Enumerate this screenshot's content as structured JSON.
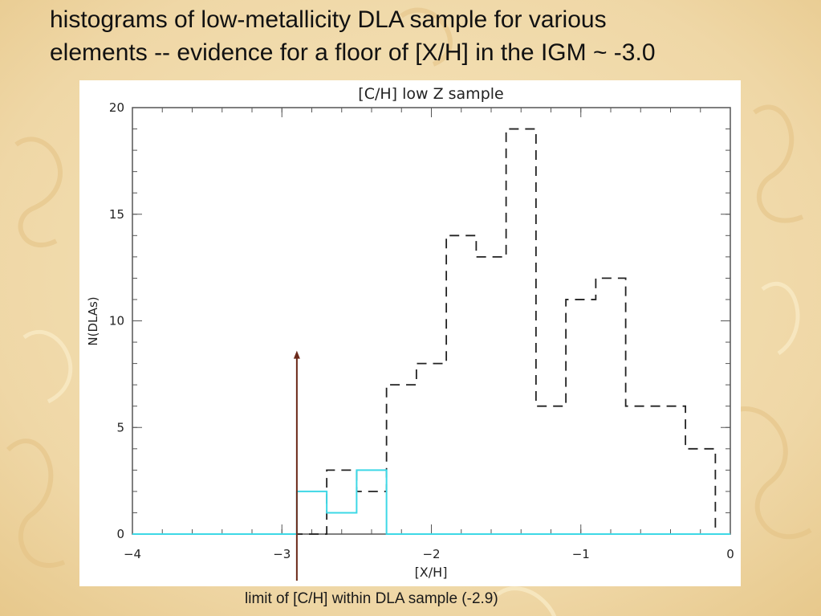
{
  "slide": {
    "title_line1": "histograms of low-metallicity DLA sample for various",
    "title_line2": "elements -- evidence for a floor of [X/H] in the IGM ~ -3.0",
    "caption": "limit of [C/H] within DLA sample (-2.9)"
  },
  "colors": {
    "background": "#f1ddb0",
    "dashed_series": "#222222",
    "solid_series": "#3ed8e6",
    "arrow": "#6b2a1a"
  },
  "chart_data": {
    "type": "histogram",
    "title": "[C/H]  low Z sample",
    "xlabel": "[X/H]",
    "ylabel": "N(DLAs)",
    "xlim": [
      -4,
      0
    ],
    "ylim": [
      0,
      20
    ],
    "x_ticks": [
      "−4",
      "−3",
      "−2",
      "−1",
      "0"
    ],
    "y_ticks": [
      "0",
      "5",
      "10",
      "15",
      "20"
    ],
    "x_tick_values": [
      -4,
      -3,
      -2,
      -1,
      0
    ],
    "y_tick_values": [
      0,
      5,
      10,
      15,
      20
    ],
    "bin_edges": [
      -4.0,
      -3.8,
      -3.6,
      -3.4,
      -3.2,
      -3.0,
      -2.9,
      -2.7,
      -2.5,
      -2.3,
      -2.1,
      -1.9,
      -1.7,
      -1.5,
      -1.3,
      -1.1,
      -0.9,
      -0.7,
      -0.5,
      -0.3,
      -0.1,
      0.0
    ],
    "series": [
      {
        "style": "dashed",
        "color": "#222222",
        "counts": [
          0,
          0,
          0,
          0,
          0,
          0,
          0,
          3,
          2,
          7,
          8,
          14,
          13,
          19,
          6,
          11,
          12,
          6,
          6,
          4,
          0
        ]
      },
      {
        "style": "solid",
        "color": "#3ed8e6",
        "counts": [
          0,
          0,
          0,
          0,
          0,
          0,
          2,
          1,
          3,
          0,
          0,
          0,
          0,
          0,
          0,
          0,
          0,
          0,
          0,
          0,
          0
        ]
      }
    ],
    "annotation": {
      "type": "arrow",
      "x": -2.9,
      "y_top": 8.6,
      "text": "limit of [C/H] within DLA sample (-2.9)"
    }
  }
}
